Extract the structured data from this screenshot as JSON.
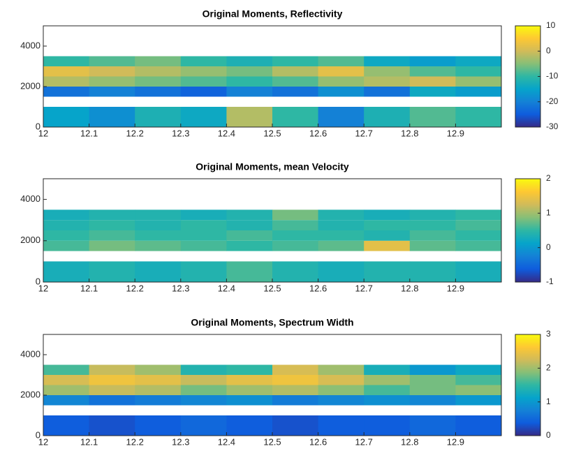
{
  "chart_data": [
    {
      "type": "heatmap",
      "title": "Original Moments, Reflectivity",
      "xbins": [
        12,
        12.1,
        12.2,
        12.3,
        12.4,
        12.5,
        12.6,
        12.7,
        12.8,
        12.9,
        13
      ],
      "ybins": [
        0,
        1000,
        1500,
        2000,
        2500,
        3000,
        3500
      ],
      "z": [
        [
          -15,
          -18,
          -12,
          -14,
          -2,
          -10,
          -20,
          -12,
          -8,
          -10
        ],
        [
          null,
          null,
          null,
          null,
          null,
          null,
          null,
          null,
          null,
          null
        ],
        [
          -22,
          -20,
          -22,
          -24,
          -20,
          -22,
          -18,
          -22,
          -14,
          -16
        ],
        [
          -2,
          -4,
          -6,
          -8,
          -10,
          -8,
          -4,
          -2,
          0,
          -4
        ],
        [
          2,
          0,
          -2,
          -4,
          -6,
          -2,
          2,
          -4,
          -8,
          -10
        ],
        [
          -10,
          -8,
          -6,
          -10,
          -12,
          -10,
          -8,
          -14,
          -16,
          -14
        ]
      ],
      "xlim": [
        12,
        13
      ],
      "xticks": [
        12,
        12.1,
        12.2,
        12.3,
        12.4,
        12.5,
        12.6,
        12.7,
        12.8,
        12.9
      ],
      "ylim": [
        0,
        5000
      ],
      "yticks": [
        0,
        2000,
        4000
      ],
      "clim": [
        -30,
        10
      ],
      "cticks": [
        -30,
        -20,
        -10,
        0,
        10
      ],
      "colormap": [
        "#352a87",
        "#0f5cdd",
        "#1481d6",
        "#06a4ca",
        "#2eb7a4",
        "#87bf77",
        "#d1bb59",
        "#fec832",
        "#f9fb0e"
      ]
    },
    {
      "type": "heatmap",
      "title": "Original Moments, mean Velocity",
      "xbins": [
        12,
        12.1,
        12.2,
        12.3,
        12.4,
        12.5,
        12.6,
        12.7,
        12.8,
        12.9,
        13
      ],
      "ybins": [
        0,
        1000,
        1500,
        2000,
        2500,
        3000,
        3500
      ],
      "z": [
        [
          0.3,
          0.4,
          0.3,
          0.4,
          0.6,
          0.4,
          0.3,
          0.4,
          0.4,
          0.3
        ],
        [
          null,
          null,
          null,
          null,
          null,
          null,
          null,
          null,
          null,
          null
        ],
        [
          0.6,
          0.8,
          0.7,
          0.6,
          0.5,
          0.6,
          0.7,
          1.4,
          0.7,
          0.6
        ],
        [
          0.5,
          0.6,
          0.5,
          0.5,
          0.6,
          0.5,
          0.5,
          0.4,
          0.6,
          0.5
        ],
        [
          0.4,
          0.5,
          0.4,
          0.5,
          0.4,
          0.6,
          0.4,
          0.5,
          0.5,
          0.6
        ],
        [
          0.3,
          0.4,
          0.4,
          0.3,
          0.4,
          0.8,
          0.4,
          0.3,
          0.4,
          0.5
        ]
      ],
      "xlim": [
        12,
        13
      ],
      "xticks": [
        12,
        12.1,
        12.2,
        12.3,
        12.4,
        12.5,
        12.6,
        12.7,
        12.8,
        12.9
      ],
      "ylim": [
        0,
        5000
      ],
      "yticks": [
        0,
        2000,
        4000
      ],
      "clim": [
        -1,
        2
      ],
      "cticks": [
        -1,
        0,
        1,
        2
      ],
      "colormap": [
        "#352a87",
        "#0f5cdd",
        "#1481d6",
        "#06a4ca",
        "#2eb7a4",
        "#87bf77",
        "#d1bb59",
        "#fec832",
        "#f9fb0e"
      ]
    },
    {
      "type": "heatmap",
      "title": "Original Moments, Spectrum Width",
      "xbins": [
        12,
        12.1,
        12.2,
        12.3,
        12.4,
        12.5,
        12.6,
        12.7,
        12.8,
        12.9,
        13
      ],
      "ybins": [
        0,
        1000,
        1500,
        2000,
        2500,
        3000,
        3500
      ],
      "z": [
        [
          0.4,
          0.3,
          0.4,
          0.5,
          0.4,
          0.3,
          0.4,
          0.4,
          0.5,
          0.4
        ],
        [
          null,
          null,
          null,
          null,
          null,
          null,
          null,
          null,
          null,
          null
        ],
        [
          0.8,
          0.6,
          0.7,
          0.8,
          0.9,
          0.7,
          0.8,
          0.9,
          0.8,
          1.0
        ],
        [
          2.0,
          2.2,
          2.1,
          1.8,
          2.0,
          2.1,
          1.9,
          1.6,
          1.8,
          1.9
        ],
        [
          2.3,
          2.5,
          2.4,
          2.2,
          2.4,
          2.5,
          2.3,
          2.0,
          1.8,
          1.6
        ],
        [
          1.6,
          2.2,
          2.0,
          1.4,
          1.5,
          2.3,
          2.0,
          1.3,
          1.0,
          1.2
        ]
      ],
      "xlim": [
        12,
        13
      ],
      "xticks": [
        12,
        12.1,
        12.2,
        12.3,
        12.4,
        12.5,
        12.6,
        12.7,
        12.8,
        12.9
      ],
      "ylim": [
        0,
        5000
      ],
      "yticks": [
        0,
        2000,
        4000
      ],
      "clim": [
        0,
        3
      ],
      "cticks": [
        0,
        1,
        2,
        3
      ],
      "colormap": [
        "#352a87",
        "#0f5cdd",
        "#1481d6",
        "#06a4ca",
        "#2eb7a4",
        "#87bf77",
        "#d1bb59",
        "#fec832",
        "#f9fb0e"
      ]
    }
  ]
}
